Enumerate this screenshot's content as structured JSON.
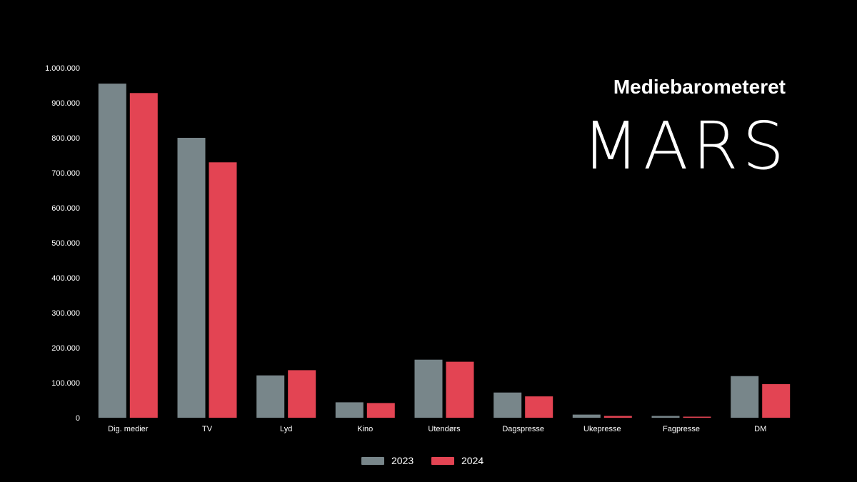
{
  "header": {
    "title": "Mediebarometeret",
    "month": "MARS"
  },
  "colors": {
    "background": "#000000",
    "series_2023": "#78868a",
    "series_2024": "#e34453",
    "text": "#ffffff"
  },
  "chart_data": {
    "type": "bar",
    "title": "",
    "xlabel": "",
    "ylabel": "",
    "categories": [
      "Dig. medier",
      "TV",
      "Lyd",
      "Kino",
      "Utendørs",
      "Dagspresse",
      "Ukepresse",
      "Fagpresse",
      "DM"
    ],
    "series": [
      {
        "name": "2023",
        "values": [
          955000,
          800000,
          121000,
          44000,
          166000,
          72000,
          9000,
          5000,
          119000
        ]
      },
      {
        "name": "2024",
        "values": [
          928000,
          730000,
          136000,
          42000,
          160000,
          61000,
          5000,
          3000,
          96000
        ]
      }
    ],
    "ylim": [
      0,
      1000000
    ],
    "yticks": [
      0,
      100000,
      200000,
      300000,
      400000,
      500000,
      600000,
      700000,
      800000,
      900000,
      1000000
    ],
    "ytick_labels": [
      "0",
      "100.000",
      "200.000",
      "300.000",
      "400.000",
      "500.000",
      "600.000",
      "700.000",
      "800.000",
      "900.000",
      "1.000.000"
    ],
    "grid": false,
    "legend_position": "bottom-center"
  }
}
